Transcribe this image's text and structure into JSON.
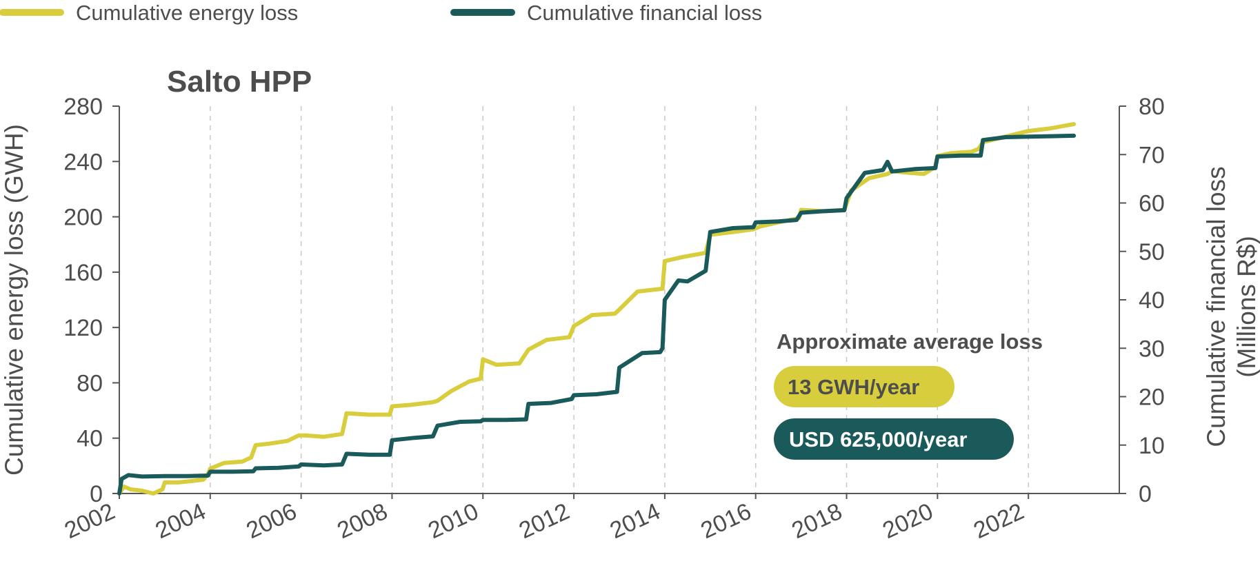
{
  "chart_data": {
    "type": "line",
    "title": "Salto HPP",
    "xlabel": "",
    "ylabel": "Cumulative energy loss (GWH)",
    "y2label_line1": "Cumulative financial loss",
    "y2label_line2": "(Millions R$)",
    "xlim": [
      2002,
      2024
    ],
    "ylim": [
      0,
      280
    ],
    "y2lim": [
      0,
      80
    ],
    "x_ticks": [
      "2002",
      "2004",
      "2006",
      "2008",
      "2010",
      "2012",
      "2014",
      "2016",
      "2018",
      "2020",
      "2022"
    ],
    "y_ticks": [
      "0",
      "40",
      "80",
      "120",
      "160",
      "200",
      "240",
      "280"
    ],
    "y2_ticks": [
      "0",
      "10",
      "20",
      "30",
      "40",
      "50",
      "60",
      "70",
      "80"
    ],
    "grid": "vertical dashed at x ticks",
    "legend_position": "top",
    "colors": {
      "energy": "#d8cd3d",
      "financial": "#1a5a5a",
      "text": "#4d4d4d",
      "axis": "#555555"
    },
    "series": [
      {
        "name": "Cumulative energy loss",
        "axis": "left",
        "x": [
          2002.0,
          2002.1,
          2002.25,
          2002.5,
          2002.75,
          2002.95,
          2003.0,
          2003.3,
          2003.6,
          2003.85,
          2003.95,
          2004.0,
          2004.3,
          2004.7,
          2004.9,
          2005.0,
          2005.3,
          2005.7,
          2005.95,
          2006.1,
          2006.5,
          2006.9,
          2007.0,
          2007.5,
          2007.95,
          2008.0,
          2008.4,
          2008.9,
          2009.0,
          2009.3,
          2009.7,
          2009.95,
          2010.0,
          2010.3,
          2010.8,
          2011.0,
          2011.4,
          2011.9,
          2012.0,
          2012.4,
          2012.9,
          2013.0,
          2013.4,
          2013.95,
          2014.0,
          2014.4,
          2014.9,
          2015.0,
          2015.5,
          2015.95,
          2016.1,
          2016.5,
          2016.95,
          2017.0,
          2017.5,
          2017.95,
          2018.1,
          2018.5,
          2018.9,
          2019.0,
          2019.3,
          2019.7,
          2019.95,
          2020.0,
          2020.3,
          2020.75,
          2020.9,
          2021.0,
          2021.5,
          2022.0,
          2022.5,
          2023.0
        ],
        "values": [
          0,
          5,
          3,
          2,
          0,
          3,
          8,
          8,
          9,
          10,
          14,
          18,
          22,
          23,
          26,
          35,
          36,
          38,
          42,
          42,
          41,
          43,
          58,
          57,
          57,
          63,
          64,
          66,
          67,
          74,
          81,
          83,
          97,
          93,
          94,
          104,
          111,
          113,
          121,
          129,
          130,
          133,
          146,
          148,
          168,
          171,
          174,
          187,
          189,
          191,
          193,
          196,
          199,
          205,
          204,
          205,
          219,
          228,
          231,
          233,
          232,
          231,
          236,
          244,
          246,
          247,
          249,
          254,
          258,
          262,
          264,
          267
        ]
      },
      {
        "name": "Cumulative financial loss",
        "axis": "right",
        "x": [
          2002.0,
          2002.05,
          2002.2,
          2002.5,
          2003.0,
          2003.5,
          2003.95,
          2004.0,
          2004.5,
          2004.95,
          2005.0,
          2005.5,
          2005.95,
          2006.0,
          2006.5,
          2006.9,
          2007.0,
          2007.5,
          2007.95,
          2008.0,
          2008.5,
          2008.9,
          2009.0,
          2009.5,
          2009.95,
          2010.0,
          2010.5,
          2010.95,
          2011.0,
          2011.5,
          2011.95,
          2012.0,
          2012.5,
          2012.95,
          2013.0,
          2013.5,
          2013.9,
          2013.95,
          2014.0,
          2014.3,
          2014.5,
          2014.9,
          2015.0,
          2015.5,
          2015.95,
          2016.0,
          2016.5,
          2016.9,
          2017.0,
          2017.5,
          2017.95,
          2018.0,
          2018.4,
          2018.8,
          2018.9,
          2019.0,
          2019.5,
          2019.95,
          2020.0,
          2020.5,
          2020.95,
          2021.0,
          2021.5,
          2022.0,
          2022.5,
          2023.0
        ],
        "values": [
          0,
          3,
          3.8,
          3.5,
          3.6,
          3.6,
          3.7,
          4.5,
          4.5,
          4.6,
          5.2,
          5.3,
          5.6,
          6.0,
          5.8,
          6.0,
          8.2,
          8.0,
          8.0,
          11.0,
          11.5,
          11.8,
          14.0,
          14.8,
          14.9,
          15.2,
          15.2,
          15.3,
          18.5,
          18.7,
          19.5,
          20.3,
          20.5,
          21.0,
          26.0,
          29.0,
          29.2,
          30.0,
          40.0,
          44.0,
          43.8,
          46.0,
          54.0,
          54.8,
          55.0,
          56.0,
          56.2,
          56.5,
          58.0,
          58.3,
          58.5,
          61.0,
          66.2,
          66.8,
          68.5,
          66.5,
          67.0,
          67.2,
          69.6,
          69.8,
          69.8,
          73.0,
          73.6,
          73.7,
          73.8,
          73.9
        ]
      }
    ],
    "annotation": {
      "title": "Approximate average loss",
      "energy_value": "13 GWH/year",
      "financial_value": "USD 625,000/year"
    }
  }
}
